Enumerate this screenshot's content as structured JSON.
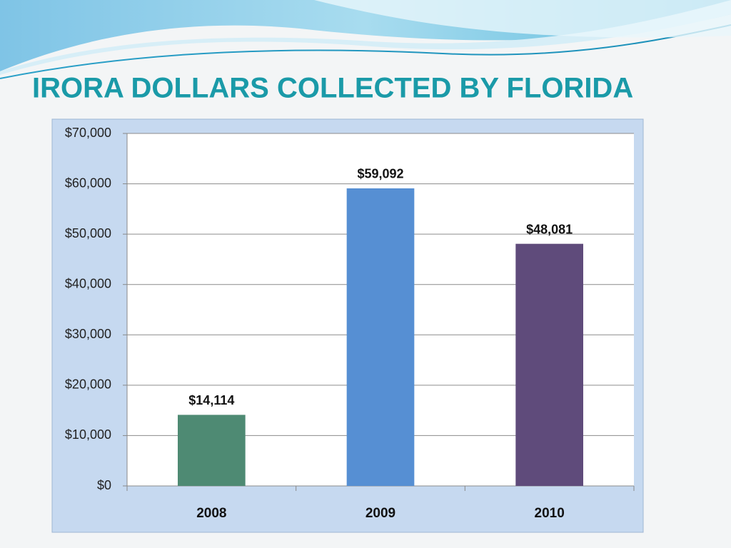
{
  "chart_data": {
    "type": "bar",
    "title": "IRORA DOLLARS COLLECTED BY FLORIDA",
    "categories": [
      "2008",
      "2009",
      "2010"
    ],
    "values": [
      14114,
      59092,
      48081
    ],
    "value_labels": [
      "$14,114",
      "$59,092",
      "$48,081"
    ],
    "colors": [
      "#4e8a73",
      "#568fd3",
      "#5f4b7b"
    ],
    "ylim": [
      0,
      70000
    ],
    "yticks": [
      {
        "value": 0,
        "label": "$0"
      },
      {
        "value": 10000,
        "label": "$10,000"
      },
      {
        "value": 20000,
        "label": "$20,000"
      },
      {
        "value": 30000,
        "label": "$30,000"
      },
      {
        "value": 40000,
        "label": "$40,000"
      },
      {
        "value": 50000,
        "label": "$50,000"
      },
      {
        "value": 60000,
        "label": "$60,000"
      },
      {
        "value": 70000,
        "label": "$70,000"
      }
    ],
    "grid": true
  }
}
